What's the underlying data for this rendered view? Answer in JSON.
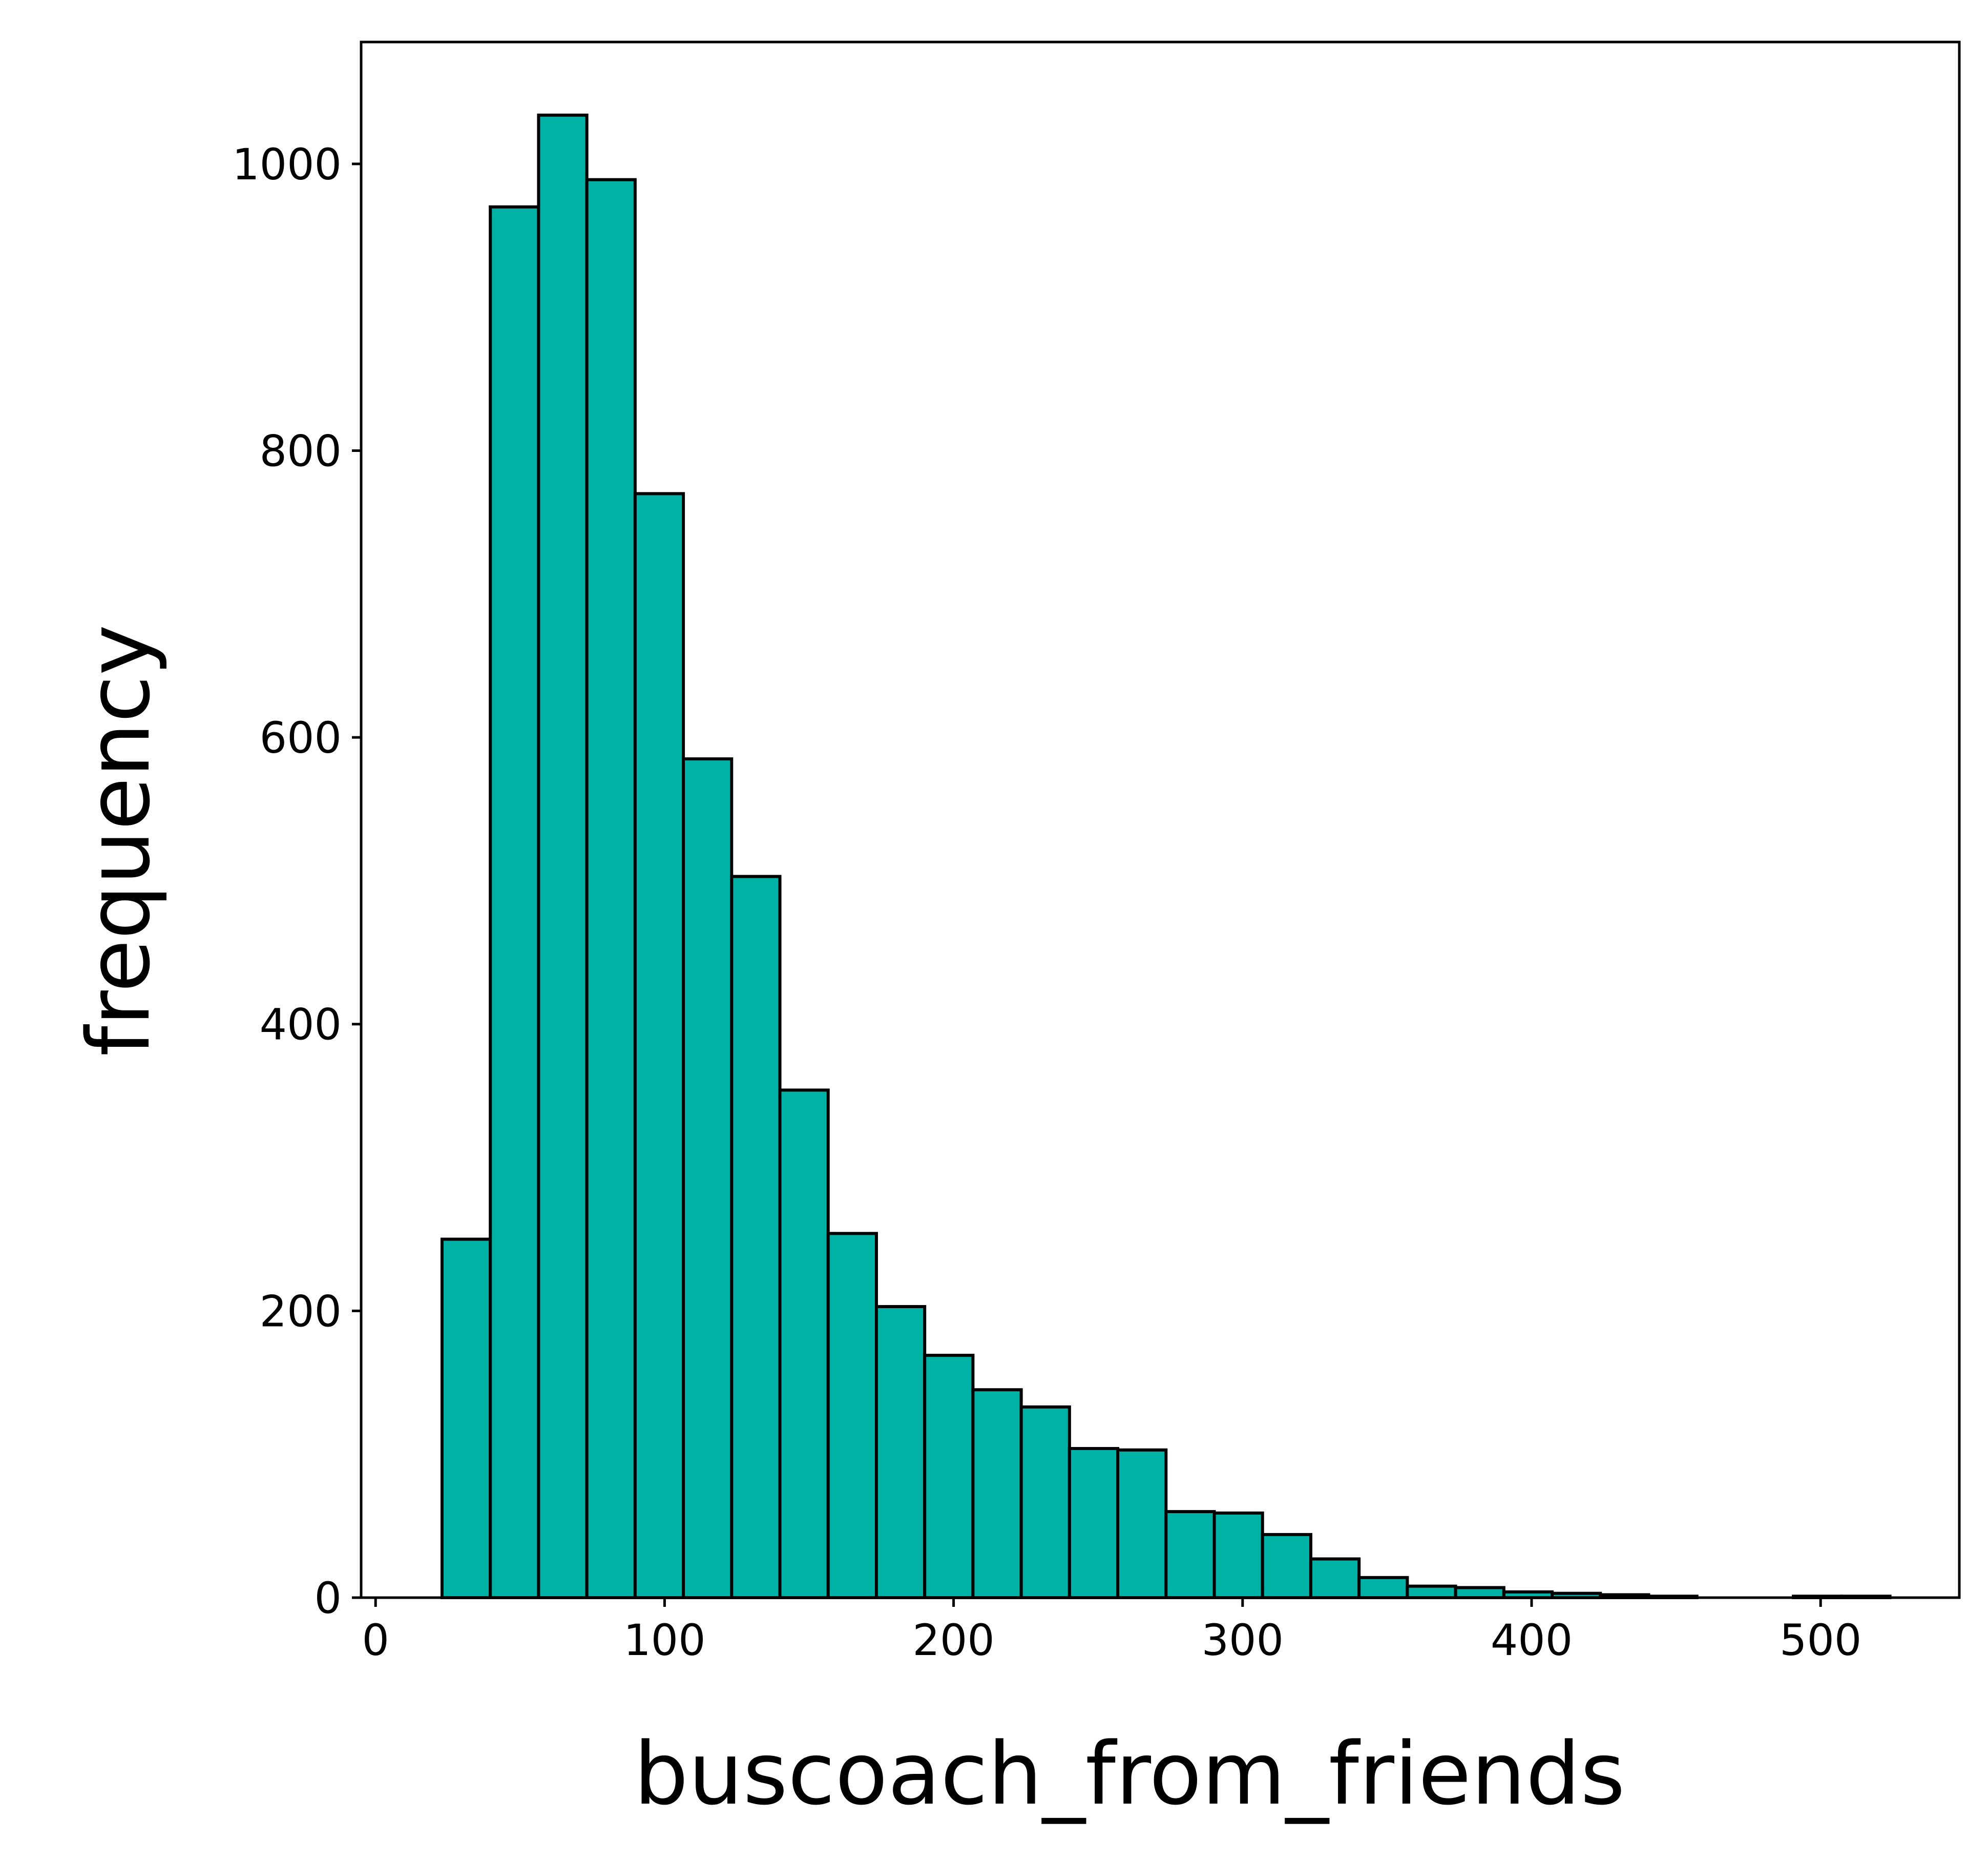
{
  "chart_data": {
    "type": "bar",
    "title": "",
    "xlabel": "buscoach_from_friends",
    "ylabel": "frequency",
    "xlim": [
      -5,
      548
    ],
    "ylim": [
      0,
      1085
    ],
    "x_ticks": [
      0,
      100,
      200,
      300,
      400,
      500
    ],
    "y_ticks": [
      0,
      200,
      400,
      600,
      800,
      1000
    ],
    "grid": false,
    "legend": "none",
    "bar_color": "#00b2a5",
    "edge_color": "#000000",
    "bin_width": 16.7,
    "bins": [
      {
        "x0": 23.0,
        "count": 250
      },
      {
        "x0": 39.7,
        "count": 970
      },
      {
        "x0": 56.4,
        "count": 1034
      },
      {
        "x0": 73.1,
        "count": 989
      },
      {
        "x0": 89.8,
        "count": 770
      },
      {
        "x0": 106.5,
        "count": 585
      },
      {
        "x0": 123.2,
        "count": 503
      },
      {
        "x0": 139.9,
        "count": 354
      },
      {
        "x0": 156.6,
        "count": 254
      },
      {
        "x0": 173.3,
        "count": 203
      },
      {
        "x0": 190.0,
        "count": 169
      },
      {
        "x0": 206.7,
        "count": 145
      },
      {
        "x0": 223.4,
        "count": 133
      },
      {
        "x0": 240.1,
        "count": 104
      },
      {
        "x0": 256.8,
        "count": 103
      },
      {
        "x0": 273.5,
        "count": 60
      },
      {
        "x0": 290.2,
        "count": 59
      },
      {
        "x0": 306.9,
        "count": 44
      },
      {
        "x0": 323.6,
        "count": 27
      },
      {
        "x0": 340.3,
        "count": 14
      },
      {
        "x0": 357.0,
        "count": 8
      },
      {
        "x0": 373.7,
        "count": 7
      },
      {
        "x0": 390.4,
        "count": 4
      },
      {
        "x0": 407.1,
        "count": 3
      },
      {
        "x0": 423.8,
        "count": 2
      },
      {
        "x0": 440.5,
        "count": 1
      },
      {
        "x0": 457.2,
        "count": 0
      },
      {
        "x0": 473.9,
        "count": 0
      },
      {
        "x0": 490.6,
        "count": 1
      },
      {
        "x0": 507.3,
        "count": 1
      }
    ]
  }
}
